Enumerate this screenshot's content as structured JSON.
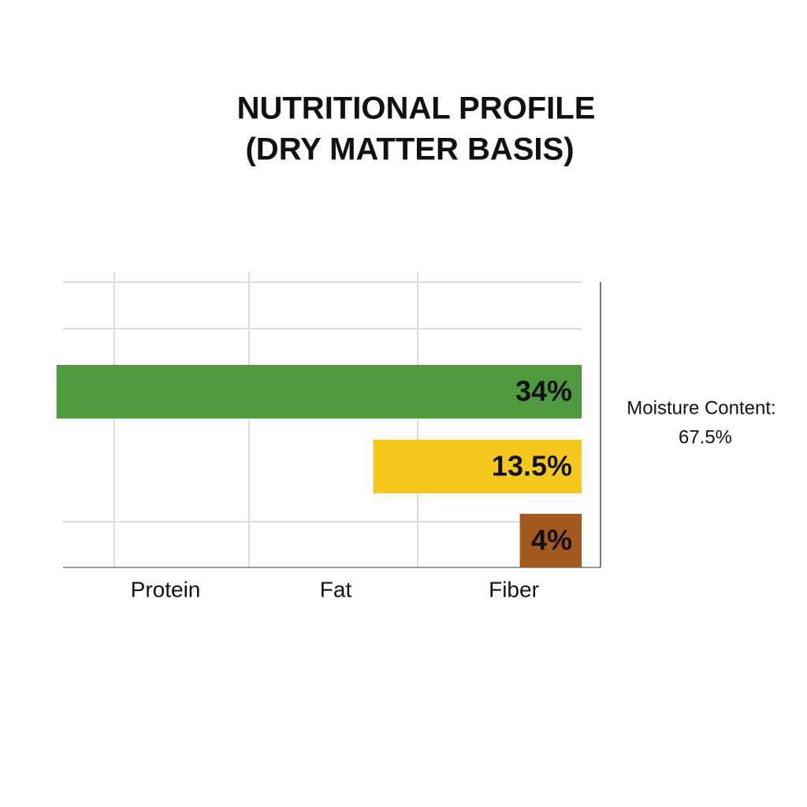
{
  "chart_data": {
    "type": "bar",
    "orientation": "horizontal",
    "title": [
      "NUTRITIONAL PROFILE",
      "(DRY MATTER BASIS)"
    ],
    "categories": [
      "Protein",
      "Fat",
      "Fiber"
    ],
    "series": [
      {
        "values": [
          34,
          13.5,
          4
        ],
        "value_labels": [
          "34%",
          "13.5%",
          "4%"
        ],
        "colors": [
          "#4f9a3e",
          "#f6c81e",
          "#a4581f"
        ],
        "label_colors": [
          "#ffffff",
          "#111111",
          "#ffffff"
        ]
      }
    ],
    "xlim": [
      0,
      35
    ],
    "annotation": [
      "Moisture Content:",
      "67.5%"
    ]
  }
}
